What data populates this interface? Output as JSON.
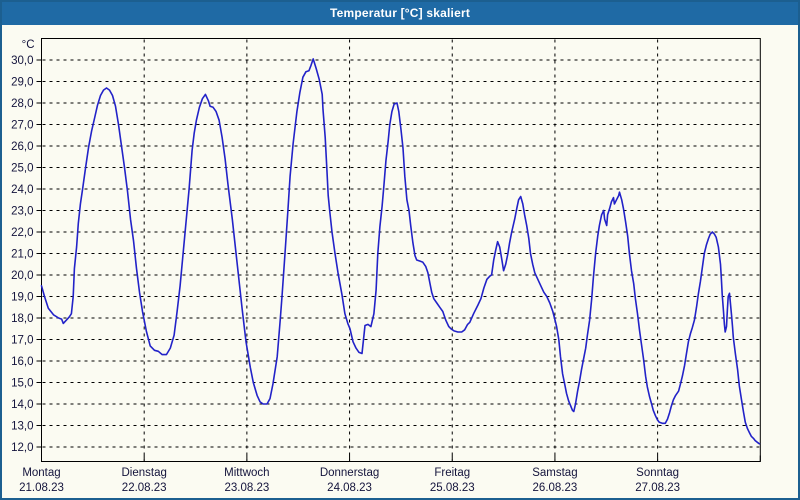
{
  "window": {
    "title": "Temperatur [°C] skaliert"
  },
  "colors": {
    "frame": "#1c5f90",
    "titlebar": "#1f6aa5",
    "title_text": "#ffffff",
    "background": "#fbfbf2",
    "grid": "#000000",
    "text": "#14143c",
    "curve": "#2222c8"
  },
  "chart_data": {
    "type": "line",
    "title": "Temperatur [°C] skaliert",
    "grid": "dashed",
    "legend": "none",
    "y_axis": {
      "unit": "°C",
      "min": 12.0,
      "max": 30.0,
      "tick_step": 1.0,
      "decimal_separator": ","
    },
    "x_axis": {
      "total_hours": 168,
      "days": [
        {
          "name": "Montag",
          "date": "21.08.23"
        },
        {
          "name": "Dienstag",
          "date": "22.08.23"
        },
        {
          "name": "Mittwoch",
          "date": "23.08.23"
        },
        {
          "name": "Donnerstag",
          "date": "24.08.23"
        },
        {
          "name": "Freitag",
          "date": "25.08.23"
        },
        {
          "name": "Samstag",
          "date": "26.08.23"
        },
        {
          "name": "Sonntag",
          "date": "27.08.23"
        }
      ]
    },
    "series": [
      {
        "name": "Temperatur",
        "color": "#2222c8",
        "points": [
          [
            0,
            19.5
          ],
          [
            0.7,
            19.0
          ],
          [
            1.6,
            18.45
          ],
          [
            2.8,
            18.15
          ],
          [
            4,
            18.0
          ],
          [
            4.7,
            17.95
          ],
          [
            5.1,
            17.75
          ],
          [
            5.8,
            17.9
          ],
          [
            6.5,
            18.05
          ],
          [
            7,
            18.2
          ],
          [
            7.4,
            19.0
          ],
          [
            7.7,
            20.3
          ],
          [
            8.2,
            21.3
          ],
          [
            8.6,
            22.4
          ],
          [
            9.1,
            23.3
          ],
          [
            9.6,
            24.0
          ],
          [
            10.3,
            25.0
          ],
          [
            11,
            25.95
          ],
          [
            11.7,
            26.7
          ],
          [
            12.4,
            27.3
          ],
          [
            13.1,
            27.9
          ],
          [
            13.8,
            28.35
          ],
          [
            14.5,
            28.6
          ],
          [
            15.2,
            28.7
          ],
          [
            15.9,
            28.6
          ],
          [
            16.6,
            28.35
          ],
          [
            17.3,
            27.85
          ],
          [
            18,
            27.0
          ],
          [
            18.7,
            26.0
          ],
          [
            19.4,
            25.0
          ],
          [
            20.1,
            23.9
          ],
          [
            20.8,
            22.6
          ],
          [
            21.5,
            21.6
          ],
          [
            22.2,
            20.3
          ],
          [
            22.9,
            19.2
          ],
          [
            23.6,
            18.3
          ],
          [
            24.5,
            17.4
          ],
          [
            25.4,
            16.7
          ],
          [
            26.4,
            16.5
          ],
          [
            27.3,
            16.45
          ],
          [
            28.2,
            16.3
          ],
          [
            29.2,
            16.3
          ],
          [
            30.1,
            16.6
          ],
          [
            31,
            17.2
          ],
          [
            31.7,
            18.3
          ],
          [
            32.4,
            19.5
          ],
          [
            33.1,
            21.0
          ],
          [
            33.8,
            22.5
          ],
          [
            34.5,
            24.0
          ],
          [
            35.2,
            25.8
          ],
          [
            35.7,
            26.6
          ],
          [
            36.2,
            27.2
          ],
          [
            36.9,
            27.8
          ],
          [
            37.6,
            28.2
          ],
          [
            38.3,
            28.4
          ],
          [
            39,
            28.1
          ],
          [
            39.4,
            27.85
          ],
          [
            40.1,
            27.8
          ],
          [
            40.8,
            27.6
          ],
          [
            41.5,
            27.2
          ],
          [
            42.2,
            26.4
          ],
          [
            42.9,
            25.4
          ],
          [
            43.6,
            24.2
          ],
          [
            44.6,
            22.6
          ],
          [
            45.7,
            20.6
          ],
          [
            46.9,
            18.4
          ],
          [
            47.8,
            16.9
          ],
          [
            48.8,
            15.7
          ],
          [
            49.5,
            15.0
          ],
          [
            50.4,
            14.4
          ],
          [
            51.1,
            14.1
          ],
          [
            51.8,
            14.0
          ],
          [
            52.7,
            14.0
          ],
          [
            53.4,
            14.25
          ],
          [
            54.1,
            14.95
          ],
          [
            55.1,
            16.2
          ],
          [
            55.8,
            17.9
          ],
          [
            56.2,
            19.0
          ],
          [
            56.9,
            21.0
          ],
          [
            57.6,
            23.0
          ],
          [
            58.1,
            24.6
          ],
          [
            58.8,
            26.1
          ],
          [
            59.7,
            27.6
          ],
          [
            60.4,
            28.5
          ],
          [
            61.1,
            29.2
          ],
          [
            61.8,
            29.45
          ],
          [
            62.5,
            29.5
          ],
          [
            63,
            29.75
          ],
          [
            63.5,
            30.05
          ],
          [
            64.2,
            29.6
          ],
          [
            64.9,
            29.1
          ],
          [
            65.6,
            28.4
          ],
          [
            65.8,
            27.7
          ],
          [
            66.3,
            26.4
          ],
          [
            66.7,
            24.9
          ],
          [
            67,
            23.7
          ],
          [
            67.4,
            22.9
          ],
          [
            67.9,
            22.0
          ],
          [
            68.6,
            21.0
          ],
          [
            69.3,
            20.1
          ],
          [
            70.2,
            19.1
          ],
          [
            70.9,
            18.2
          ],
          [
            71.6,
            17.75
          ],
          [
            72.1,
            17.5
          ],
          [
            72.8,
            16.9
          ],
          [
            73.5,
            16.6
          ],
          [
            74.2,
            16.4
          ],
          [
            74.9,
            16.35
          ],
          [
            75.6,
            17.65
          ],
          [
            76.3,
            17.7
          ],
          [
            77,
            17.6
          ],
          [
            77.7,
            18.2
          ],
          [
            78.2,
            19.3
          ],
          [
            78.6,
            21.0
          ],
          [
            79.1,
            22.25
          ],
          [
            79.6,
            23.2
          ],
          [
            80,
            24.1
          ],
          [
            80.5,
            25.3
          ],
          [
            81,
            26.2
          ],
          [
            81.4,
            27.0
          ],
          [
            81.9,
            27.6
          ],
          [
            82.4,
            27.95
          ],
          [
            83.1,
            28.0
          ],
          [
            83.5,
            27.6
          ],
          [
            84,
            26.8
          ],
          [
            84.5,
            25.9
          ],
          [
            84.9,
            24.6
          ],
          [
            85.4,
            23.5
          ],
          [
            85.9,
            23.0
          ],
          [
            86.3,
            22.3
          ],
          [
            86.8,
            21.5
          ],
          [
            87.3,
            20.9
          ],
          [
            87.7,
            20.7
          ],
          [
            88.4,
            20.65
          ],
          [
            89.1,
            20.6
          ],
          [
            89.8,
            20.4
          ],
          [
            90.3,
            20.1
          ],
          [
            90.8,
            19.6
          ],
          [
            91.2,
            19.2
          ],
          [
            91.7,
            18.9
          ],
          [
            92.4,
            18.7
          ],
          [
            93.1,
            18.5
          ],
          [
            93.8,
            18.3
          ],
          [
            94.5,
            17.9
          ],
          [
            95.2,
            17.6
          ],
          [
            95.7,
            17.5
          ],
          [
            96.4,
            17.4
          ],
          [
            97.3,
            17.35
          ],
          [
            98.2,
            17.35
          ],
          [
            98.9,
            17.45
          ],
          [
            99.6,
            17.7
          ],
          [
            100.1,
            17.8
          ],
          [
            101,
            18.2
          ],
          [
            102,
            18.6
          ],
          [
            102.7,
            18.9
          ],
          [
            103.4,
            19.4
          ],
          [
            104.1,
            19.8
          ],
          [
            104.8,
            19.95
          ],
          [
            105.2,
            20.0
          ],
          [
            105.7,
            20.7
          ],
          [
            106.2,
            21.2
          ],
          [
            106.6,
            21.55
          ],
          [
            107.1,
            21.3
          ],
          [
            107.6,
            20.7
          ],
          [
            108,
            20.2
          ],
          [
            108.5,
            20.5
          ],
          [
            109,
            21.0
          ],
          [
            109.4,
            21.5
          ],
          [
            109.9,
            22.0
          ],
          [
            110.6,
            22.6
          ],
          [
            111.1,
            23.1
          ],
          [
            111.5,
            23.5
          ],
          [
            112,
            23.65
          ],
          [
            112.5,
            23.3
          ],
          [
            112.9,
            22.8
          ],
          [
            113.4,
            22.3
          ],
          [
            113.9,
            21.7
          ],
          [
            114.3,
            21.0
          ],
          [
            114.8,
            20.5
          ],
          [
            115.3,
            20.1
          ],
          [
            116,
            19.8
          ],
          [
            116.7,
            19.5
          ],
          [
            117.4,
            19.2
          ],
          [
            118.1,
            19.0
          ],
          [
            118.8,
            18.7
          ],
          [
            119.5,
            18.3
          ],
          [
            119.9,
            18.0
          ],
          [
            120.4,
            17.6
          ],
          [
            120.9,
            17.0
          ],
          [
            121.3,
            16.2
          ],
          [
            121.8,
            15.4
          ],
          [
            122.3,
            14.9
          ],
          [
            122.7,
            14.5
          ],
          [
            123.2,
            14.15
          ],
          [
            123.7,
            13.9
          ],
          [
            124.1,
            13.7
          ],
          [
            124.4,
            13.65
          ],
          [
            124.8,
            14.0
          ],
          [
            125.3,
            14.6
          ],
          [
            125.8,
            15.1
          ],
          [
            126.2,
            15.6
          ],
          [
            126.7,
            16.1
          ],
          [
            127.2,
            16.6
          ],
          [
            127.6,
            17.2
          ],
          [
            128.1,
            17.9
          ],
          [
            128.6,
            18.9
          ],
          [
            129,
            19.9
          ],
          [
            129.5,
            21.0
          ],
          [
            130,
            21.8
          ],
          [
            130.4,
            22.3
          ],
          [
            130.9,
            22.8
          ],
          [
            131.4,
            23.0
          ],
          [
            131.6,
            22.6
          ],
          [
            132.1,
            22.3
          ],
          [
            132.3,
            22.8
          ],
          [
            132.8,
            23.1
          ],
          [
            133.2,
            23.4
          ],
          [
            133.7,
            23.6
          ],
          [
            133.9,
            23.3
          ],
          [
            134.4,
            23.5
          ],
          [
            134.9,
            23.7
          ],
          [
            135.1,
            23.85
          ],
          [
            135.6,
            23.5
          ],
          [
            136,
            23.1
          ],
          [
            136.5,
            22.5
          ],
          [
            137,
            21.8
          ],
          [
            137.4,
            21.0
          ],
          [
            137.9,
            20.2
          ],
          [
            138.4,
            19.6
          ],
          [
            138.8,
            18.9
          ],
          [
            139.3,
            18.2
          ],
          [
            139.8,
            17.4
          ],
          [
            140.2,
            16.8
          ],
          [
            140.7,
            16.1
          ],
          [
            141.2,
            15.3
          ],
          [
            141.6,
            14.8
          ],
          [
            142.1,
            14.35
          ],
          [
            142.6,
            14.0
          ],
          [
            143,
            13.7
          ],
          [
            143.5,
            13.45
          ],
          [
            144,
            13.25
          ],
          [
            144.4,
            13.15
          ],
          [
            145.1,
            13.1
          ],
          [
            145.8,
            13.1
          ],
          [
            146.3,
            13.3
          ],
          [
            146.8,
            13.6
          ],
          [
            147.2,
            13.9
          ],
          [
            147.7,
            14.2
          ],
          [
            148.2,
            14.4
          ],
          [
            148.9,
            14.6
          ],
          [
            149.3,
            14.9
          ],
          [
            149.8,
            15.3
          ],
          [
            150.3,
            15.8
          ],
          [
            150.7,
            16.3
          ],
          [
            151.2,
            16.9
          ],
          [
            151.7,
            17.3
          ],
          [
            152.1,
            17.55
          ],
          [
            152.6,
            17.9
          ],
          [
            153.1,
            18.5
          ],
          [
            153.5,
            19.1
          ],
          [
            154,
            19.7
          ],
          [
            154.5,
            20.4
          ],
          [
            154.9,
            21.0
          ],
          [
            155.4,
            21.4
          ],
          [
            155.9,
            21.7
          ],
          [
            156.3,
            21.9
          ],
          [
            156.8,
            22.0
          ],
          [
            157.3,
            21.9
          ],
          [
            157.7,
            21.75
          ],
          [
            158.2,
            21.3
          ],
          [
            158.7,
            20.5
          ],
          [
            158.9,
            19.8
          ],
          [
            159.1,
            19.1
          ],
          [
            159.4,
            18.3
          ],
          [
            159.6,
            17.7
          ],
          [
            159.8,
            17.35
          ],
          [
            160.1,
            17.6
          ],
          [
            160.3,
            18.4
          ],
          [
            160.5,
            19.0
          ],
          [
            160.8,
            19.15
          ],
          [
            161,
            18.7
          ],
          [
            161.3,
            18.1
          ],
          [
            161.5,
            17.6
          ],
          [
            161.7,
            17.1
          ],
          [
            162.2,
            16.3
          ],
          [
            162.7,
            15.6
          ],
          [
            163.1,
            14.85
          ],
          [
            163.6,
            14.2
          ],
          [
            164.1,
            13.6
          ],
          [
            164.5,
            13.15
          ],
          [
            165,
            12.85
          ],
          [
            165.5,
            12.65
          ],
          [
            165.9,
            12.5
          ],
          [
            166.4,
            12.4
          ],
          [
            166.8,
            12.3
          ],
          [
            167.3,
            12.22
          ],
          [
            167.8,
            12.15
          ]
        ]
      }
    ]
  }
}
